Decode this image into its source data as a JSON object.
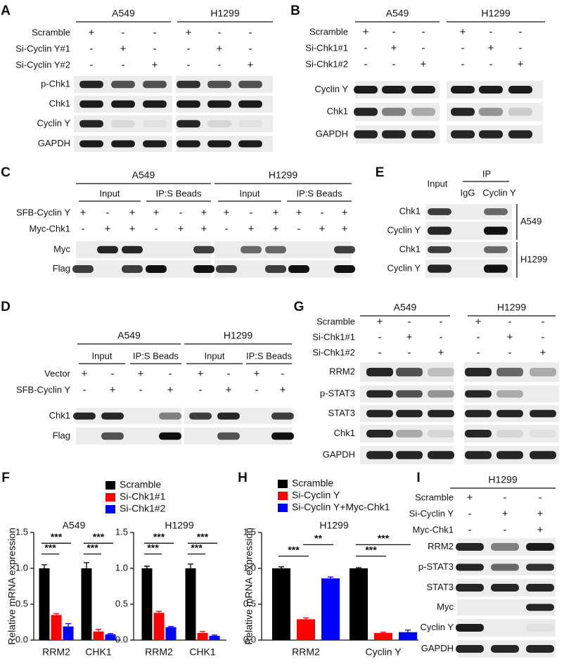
{
  "panels": {
    "A": {
      "letter": "A",
      "groups": [
        "A549",
        "H1299"
      ],
      "conditions": [
        {
          "label": "Scramble",
          "signs": [
            "+",
            "-",
            "-",
            "+",
            "-",
            "-"
          ]
        },
        {
          "label": "Si-Cyclin Y#1",
          "signs": [
            "-",
            "+",
            "-",
            "-",
            "+",
            "-"
          ]
        },
        {
          "label": "Si-Cyclin Y#2",
          "signs": [
            "-",
            "-",
            "+",
            "-",
            "-",
            "+"
          ]
        }
      ],
      "blots": [
        "p-Chk1",
        "Chk1",
        "Cyclin Y",
        "GAPDH"
      ]
    },
    "B": {
      "letter": "B",
      "groups": [
        "A549",
        "H1299"
      ],
      "conditions": [
        {
          "label": "Scramble",
          "signs": [
            "+",
            "-",
            "-",
            "+",
            "-",
            "-"
          ]
        },
        {
          "label": "Si-Chk1#1",
          "signs": [
            "-",
            "+",
            "-",
            "-",
            "+",
            "-"
          ]
        },
        {
          "label": "Si-Chk1#2",
          "signs": [
            "-",
            "-",
            "+",
            "-",
            "-",
            "+"
          ]
        }
      ],
      "blots": [
        "Cyclin Y",
        "Chk1",
        "GAPDH"
      ]
    },
    "C": {
      "letter": "C",
      "groups": [
        "A549",
        "H1299"
      ],
      "subgroups": [
        "Input",
        "IP:S Beads",
        "Input",
        "IP:S Beads"
      ],
      "conditions": [
        {
          "label": "SFB-Cyclin Y",
          "signs": [
            "+",
            "-",
            "+",
            "+",
            "-",
            "+",
            "+",
            "-",
            "+",
            "+",
            "-",
            "+"
          ]
        },
        {
          "label": "Myc-Chk1",
          "signs": [
            "-",
            "+",
            "+",
            "-",
            "+",
            "+",
            "-",
            "+",
            "+",
            "-",
            "+",
            "+"
          ]
        }
      ],
      "blots": [
        "Myc",
        "Flag"
      ]
    },
    "D": {
      "letter": "D",
      "groups": [
        "A549",
        "H1299"
      ],
      "subgroups": [
        "Input",
        "IP:S Beads",
        "Input",
        "IP:S Beads"
      ],
      "conditions": [
        {
          "label": "Vector",
          "signs": [
            "+",
            "-",
            "+",
            "-",
            "+",
            "-",
            "+",
            "-"
          ]
        },
        {
          "label": "SFB-Cyclin Y",
          "signs": [
            "-",
            "+",
            "-",
            "+",
            "-",
            "+",
            "-",
            "+"
          ]
        }
      ],
      "blots": [
        "Chk1",
        "Flag"
      ]
    },
    "E": {
      "letter": "E",
      "input": "Input",
      "ip": "IP",
      "ip_lanes": [
        "IgG",
        "Cyclin Y"
      ],
      "cell_lines": [
        {
          "name": "A549",
          "blots": [
            "Chk1",
            "Cyclin Y"
          ]
        },
        {
          "name": "H1299",
          "blots": [
            "Chk1",
            "Cyclin Y"
          ]
        }
      ]
    },
    "G": {
      "letter": "G",
      "groups": [
        "A549",
        "H1299"
      ],
      "conditions": [
        {
          "label": "Scramble",
          "signs": [
            "+",
            "-",
            "-",
            "+",
            "-",
            "-"
          ]
        },
        {
          "label": "Si-Chk1#1",
          "signs": [
            "-",
            "+",
            "-",
            "-",
            "+",
            "-"
          ]
        },
        {
          "label": "Si-Chk1#2",
          "signs": [
            "-",
            "-",
            "+",
            "-",
            "-",
            "+"
          ]
        }
      ],
      "blots": [
        "RRM2",
        "p-STAT3",
        "STAT3",
        "Chk1",
        "GAPDH"
      ]
    },
    "I": {
      "letter": "I",
      "groups": [
        "H1299"
      ],
      "conditions": [
        {
          "label": "Scramble",
          "signs": [
            "+",
            "-",
            "-"
          ]
        },
        {
          "label": "Si-Cyclin Y",
          "signs": [
            "-",
            "+",
            "+"
          ]
        },
        {
          "label": "Myc-Chk1",
          "signs": [
            "-",
            "-",
            "+"
          ]
        }
      ],
      "blots": [
        "RRM2",
        "p-STAT3",
        "STAT3",
        "Myc",
        "Cyclin Y",
        "GAPDH"
      ]
    },
    "F": {
      "letter": "F",
      "y_label": "Relative mRNA expression",
      "ylim": [
        0,
        1.5
      ],
      "yticks": [
        {
          "value": 0,
          "label": "0.0"
        },
        0.5,
        {
          "value": 1,
          "label": "1.0"
        },
        {
          "value": 1.5,
          "label": "1.5"
        }
      ],
      "series": [
        {
          "name": "Scramble",
          "color": "#000000"
        },
        {
          "name": "Si-Chk1#1",
          "color": "#ff0000"
        },
        {
          "name": "Si-Chk1#2",
          "color": "#0000ff"
        }
      ],
      "charts": [
        {
          "title": "A549",
          "categories": [
            "RRM2",
            "CHK1"
          ],
          "values": [
            [
              1.0,
              1.0
            ],
            [
              0.35,
              0.12
            ],
            [
              0.19,
              0.08
            ]
          ],
          "errors": [
            [
              0.05,
              0.08
            ],
            [
              0.02,
              0.03
            ],
            [
              0.04,
              0.01
            ]
          ],
          "significance": [
            [
              "***",
              "***"
            ],
            [
              "***",
              "***"
            ]
          ]
        },
        {
          "title": "H1299",
          "categories": [
            "RRM2",
            "CHK1"
          ],
          "values": [
            [
              1.0,
              1.0
            ],
            [
              0.38,
              0.1
            ],
            [
              0.18,
              0.06
            ]
          ],
          "errors": [
            [
              0.03,
              0.06
            ],
            [
              0.02,
              0.02
            ],
            [
              0.01,
              0.01
            ]
          ],
          "significance": [
            [
              "***",
              "***"
            ],
            [
              "***",
              "***"
            ]
          ]
        }
      ]
    },
    "H": {
      "letter": "H",
      "y_label": "Relative mRNA expression",
      "ylim": [
        0,
        1.5
      ],
      "yticks": [
        {
          "value": 0,
          "label": "0.0"
        },
        0.5,
        {
          "value": 1,
          "label": "1.0"
        },
        {
          "value": 1.5,
          "label": "1.5"
        }
      ],
      "series": [
        {
          "name": "Scramble",
          "color": "#000000"
        },
        {
          "name": "Si-Cyclin Y",
          "color": "#ff0000"
        },
        {
          "name": "Si-Cyclin Y+Myc-Chk1",
          "color": "#0000ff"
        }
      ],
      "charts": [
        {
          "title": "H1299",
          "categories": [
            "RRM2",
            "Cyclin Y"
          ],
          "values": [
            [
              1.0,
              1.0
            ],
            [
              0.29,
              0.1
            ],
            [
              0.86,
              0.11
            ]
          ],
          "errors": [
            [
              0.02,
              0.01
            ],
            [
              0.02,
              0.01
            ],
            [
              0.02,
              0.03
            ]
          ],
          "significance": [
            [
              "***",
              "**"
            ],
            [
              "***",
              "***"
            ]
          ]
        }
      ]
    }
  }
}
